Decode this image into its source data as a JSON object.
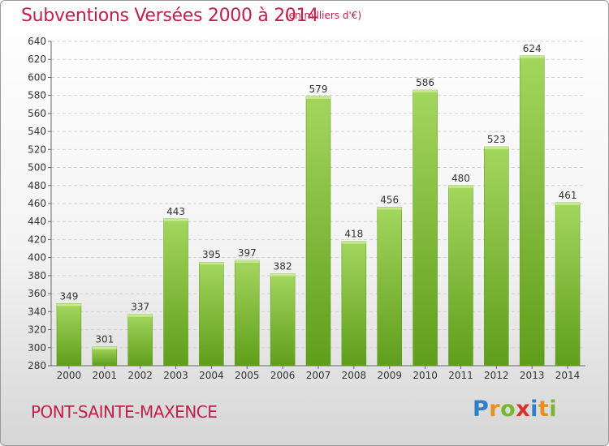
{
  "header": {
    "title": "Subventions Versées 2000 à 2014",
    "subtitle": "(en milliers d'€)"
  },
  "footer": {
    "commune": "PONT-SAINTE-MAXENCE",
    "logo_text": "Proxiti",
    "logo_letters": [
      {
        "ch": "P",
        "color": "#2e7fc4"
      },
      {
        "ch": "r",
        "color": "#e8901e"
      },
      {
        "ch": "o",
        "color": "#7cb62e"
      },
      {
        "ch": "x",
        "color": "#d8332a"
      },
      {
        "ch": "i",
        "color": "#2e7fc4"
      },
      {
        "ch": "t",
        "color": "#e8901e"
      },
      {
        "ch": "i",
        "color": "#7cb62e"
      }
    ]
  },
  "chart_data": {
    "type": "bar",
    "title": "Subventions Versées 2000 à 2014",
    "subtitle": "(en milliers d'€)",
    "xlabel": "",
    "ylabel": "",
    "categories": [
      "2000",
      "2001",
      "2002",
      "2003",
      "2004",
      "2005",
      "2006",
      "2007",
      "2008",
      "2009",
      "2010",
      "2011",
      "2012",
      "2013",
      "2014"
    ],
    "values": [
      349,
      301,
      337,
      443,
      395,
      397,
      382,
      579,
      418,
      456,
      586,
      480,
      523,
      624,
      461
    ],
    "ylim": [
      280,
      640
    ],
    "yticks": [
      280,
      300,
      320,
      340,
      360,
      380,
      400,
      420,
      440,
      460,
      480,
      500,
      520,
      540,
      560,
      580,
      600,
      620,
      640
    ],
    "grid": true,
    "legend": "none",
    "bar_color": "#7cba2a"
  }
}
